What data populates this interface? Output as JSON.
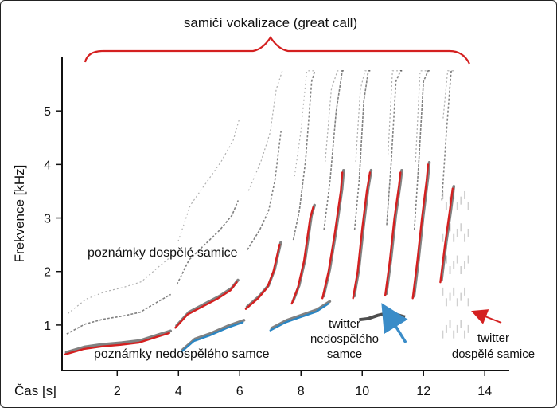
{
  "chart_data": {
    "type": "scatter",
    "title": "samičí vokalizace (great call)",
    "xlabel": "Čas [s]",
    "ylabel": "Frekvence [kHz]",
    "xlim": [
      0.2,
      14.8
    ],
    "ylim": [
      0.15,
      6.0
    ],
    "xticks": [
      2,
      4,
      6,
      8,
      10,
      12,
      14
    ],
    "yticks": [
      1,
      2,
      3,
      4,
      5
    ],
    "grid": false,
    "colors": {
      "female": "#d42020",
      "male": "#2a86c4",
      "trace": "#1a1a1a",
      "arrow_female": "#d42020",
      "arrow_male": "#3a8cc8"
    },
    "annotations": {
      "female_notes": "poznámky dospělé samice",
      "male_notes": "poznámky nedospělého samce",
      "male_twitter": [
        "twitter",
        "nedospělého",
        "samce"
      ],
      "female_twitter": [
        "twitter",
        "dospělé samice"
      ]
    },
    "series": [
      {
        "name": "poznámky dospělé samice",
        "color": "#d42020",
        "notes": [
          [
            [
              0.3,
              0.45
            ],
            [
              0.9,
              0.55
            ],
            [
              1.5,
              0.6
            ],
            [
              2.1,
              0.63
            ],
            [
              2.7,
              0.67
            ],
            [
              3.3,
              0.78
            ],
            [
              3.7,
              0.85
            ]
          ],
          [
            [
              3.9,
              0.95
            ],
            [
              4.3,
              1.2
            ],
            [
              4.8,
              1.35
            ],
            [
              5.3,
              1.5
            ],
            [
              5.7,
              1.65
            ],
            [
              5.9,
              1.8
            ]
          ],
          [
            [
              6.2,
              1.3
            ],
            [
              6.6,
              1.5
            ],
            [
              6.9,
              1.7
            ],
            [
              7.1,
              2.0
            ],
            [
              7.3,
              2.5
            ]
          ],
          [
            [
              7.7,
              1.4
            ],
            [
              7.9,
              1.7
            ],
            [
              8.1,
              2.2
            ],
            [
              8.3,
              3.0
            ],
            [
              8.4,
              3.2
            ]
          ],
          [
            [
              8.7,
              1.5
            ],
            [
              8.9,
              2.0
            ],
            [
              9.1,
              2.7
            ],
            [
              9.3,
              3.5
            ],
            [
              9.35,
              3.85
            ]
          ],
          [
            [
              9.7,
              1.5
            ],
            [
              9.85,
              2.0
            ],
            [
              10.0,
              2.8
            ],
            [
              10.15,
              3.5
            ],
            [
              10.25,
              3.85
            ]
          ],
          [
            [
              10.75,
              1.55
            ],
            [
              10.9,
              2.2
            ],
            [
              11.05,
              3.0
            ],
            [
              11.2,
              3.6
            ],
            [
              11.25,
              3.85
            ]
          ],
          [
            [
              11.65,
              1.5
            ],
            [
              11.8,
              2.2
            ],
            [
              11.95,
              3.0
            ],
            [
              12.1,
              3.7
            ],
            [
              12.15,
              4.0
            ]
          ],
          [
            [
              12.55,
              1.8
            ],
            [
              12.7,
              2.5
            ],
            [
              12.85,
              3.1
            ],
            [
              12.95,
              3.55
            ]
          ]
        ]
      },
      {
        "name": "poznámky nedospělého samce",
        "color": "#2a86c4",
        "notes": [
          [
            [
              4.1,
              0.5
            ],
            [
              4.5,
              0.7
            ],
            [
              5.0,
              0.8
            ],
            [
              5.6,
              0.95
            ],
            [
              6.1,
              1.05
            ]
          ],
          [
            [
              7.0,
              0.9
            ],
            [
              7.5,
              1.05
            ],
            [
              8.0,
              1.15
            ],
            [
              8.5,
              1.25
            ],
            [
              8.9,
              1.4
            ]
          ]
        ]
      }
    ]
  }
}
